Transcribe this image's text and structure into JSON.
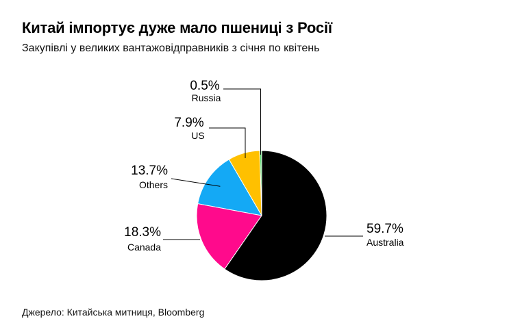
{
  "chart_data": {
    "type": "pie",
    "title": "Китай імпортує дуже мало пшениці з Росії",
    "subtitle": "Закупівлі у великих вантажовідправників з січня по квітень",
    "source": "Джерело: Китайська митниця, Bloomberg",
    "unit": "%",
    "slices": [
      {
        "label": "Russia",
        "value": 0.5,
        "value_label": "0.5%",
        "color": "#4cd964"
      },
      {
        "label": "US",
        "value": 7.9,
        "value_label": "7.9%",
        "color": "#ffc000"
      },
      {
        "label": "Others",
        "value": 13.7,
        "value_label": "13.7%",
        "color": "#14a9f5"
      },
      {
        "label": "Canada",
        "value": 18.3,
        "value_label": "18.3%",
        "color": "#ff0a8c"
      },
      {
        "label": "Australia",
        "value": 59.7,
        "value_label": "59.7%",
        "color": "#000000"
      }
    ]
  }
}
